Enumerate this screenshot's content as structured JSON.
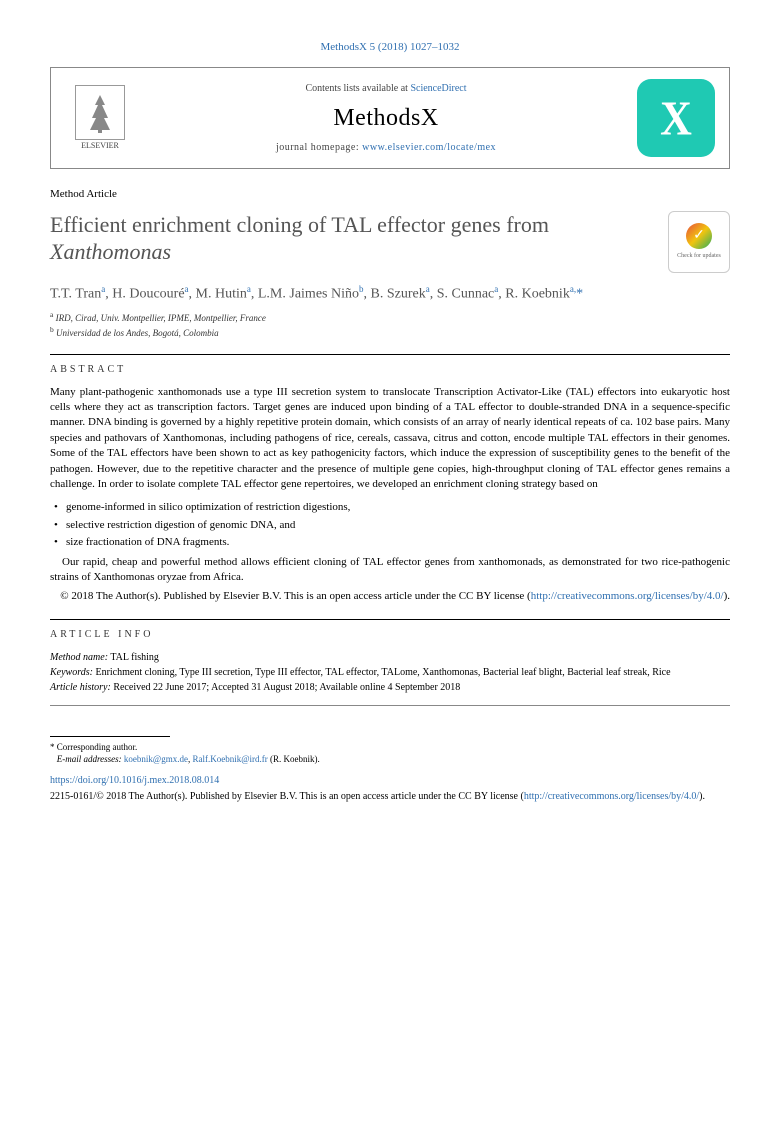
{
  "citation": "MethodsX 5 (2018) 1027–1032",
  "header": {
    "contents_prefix": "Contents lists available at ",
    "sd": "ScienceDirect",
    "journal": "MethodsX",
    "homepage_prefix": "journal homepage: ",
    "homepage_url": "www.elsevier.com/locate/mex",
    "elsevier_label": "ELSEVIER"
  },
  "article_type": "Method Article",
  "title_plain": "Efficient enrichment cloning of TAL effector genes from ",
  "title_italic": "Xanthomonas",
  "crossmark_text": "Check for updates",
  "authors_html": "T.T. Tran<sup>a</sup>, H. Doucouré<sup>a</sup>, M. Hutin<sup>a</sup>, L.M. Jaimes Niño<sup>b</sup>, B. Szurek<sup>a</sup>, S. Cunnac<sup>a</sup>, R. Koebnik<sup>a,</sup><span class='star'>*</span>",
  "affiliations": {
    "a": "IRD, Cirad, Univ. Montpellier, IPME, Montpellier, France",
    "b": "Universidad de los Andes, Bogotá, Colombia"
  },
  "abstract_label": "ABSTRACT",
  "abstract_body": "Many plant-pathogenic xanthomonads use a type III secretion system to translocate Transcription Activator-Like (TAL) effectors into eukaryotic host cells where they act as transcription factors. Target genes are induced upon binding of a TAL effector to double-stranded DNA in a sequence-specific manner. DNA binding is governed by a highly repetitive protein domain, which consists of an array of nearly identical repeats of ca. 102 base pairs. Many species and pathovars of Xanthomonas, including pathogens of rice, cereals, cassava, citrus and cotton, encode multiple TAL effectors in their genomes. Some of the TAL effectors have been shown to act as key pathogenicity factors, which induce the expression of susceptibility genes to the benefit of the pathogen. However, due to the repetitive character and the presence of multiple gene copies, high-throughput cloning of TAL effector genes remains a challenge. In order to isolate complete TAL effector gene repertoires, we developed an enrichment cloning strategy based on",
  "bullets": [
    "genome-informed in silico optimization of restriction digestions,",
    "selective restriction digestion of genomic DNA, and",
    "size fractionation of DNA fragments."
  ],
  "post_list": "Our rapid, cheap and powerful method allows efficient cloning of TAL effector genes from xanthomonads, as demonstrated for two rice-pathogenic strains of Xanthomonas oryzae from Africa.",
  "copyright_line1": "© 2018 The Author(s). Published by Elsevier B.V. This is an open access article under the CC BY license (",
  "cc_url": "http://creativecommons.org/licenses/by/4.0/",
  "copyright_close": ").",
  "article_info_label": "ARTICLE INFO",
  "method_name_label": "Method name:",
  "method_name": "TAL fishing",
  "keywords_label": "Keywords:",
  "keywords": "Enrichment cloning, Type III secretion, Type III effector, TAL effector, TALome, Xanthomonas, Bacterial leaf blight, Bacterial leaf streak, Rice",
  "history_label": "Article history:",
  "history": "Received 22 June 2017; Accepted 31 August 2018; Available online 4 September 2018",
  "corr_label": "* Corresponding author.",
  "email_label": "E-mail addresses:",
  "emails": [
    "koebnik@gmx.de",
    "Ralf.Koebnik@ird.fr"
  ],
  "email_author": "(R. Koebnik).",
  "doi": "https://doi.org/10.1016/j.mex.2018.08.014",
  "issn_line": "2215-0161/© 2018 The Author(s). Published by Elsevier B.V. This is an open access article under the CC BY license (",
  "colors": {
    "link": "#2f6fb0",
    "logo_bg": "#1fc9b3"
  }
}
